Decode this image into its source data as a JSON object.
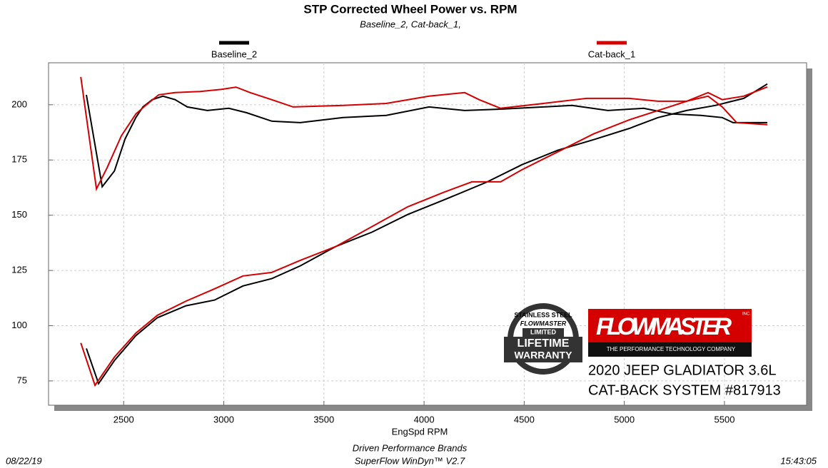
{
  "chart_data": {
    "type": "line",
    "title": "STP Corrected Wheel Power vs. RPM",
    "subtitle": "Baseline_2, Cat-back_1,",
    "x_label": "EngSpd  RPM",
    "xlim": [
      2125,
      5910
    ],
    "ylim": [
      64,
      219
    ],
    "xticks": [
      2500,
      3000,
      3500,
      4000,
      4500,
      5000,
      5500
    ],
    "yticks": [
      75,
      100,
      125,
      150,
      175,
      200
    ],
    "grid": true,
    "legend": "top",
    "series": [
      {
        "name": "Baseline_2",
        "color": "#000000",
        "curves": [
          {
            "x": [
              2314,
              2393,
              2454,
              2507,
              2561,
              2596,
              2643,
              2696,
              2757,
              2818,
              2918,
              3025,
              3114,
              3239,
              3382,
              3596,
              3811,
              4025,
              4203,
              4382,
              4596,
              4739,
              4918,
              5096,
              5239,
              5382,
              5489,
              5543,
              5614,
              5714
            ],
            "values": [
              204.5,
              162.9,
              170,
              184.5,
              194.2,
              199,
              202.3,
              203.9,
              202.3,
              199,
              197.4,
              198.4,
              196.4,
              192.6,
              191.9,
              194.2,
              195.2,
              199,
              197.4,
              198,
              199,
              199.7,
              197.4,
              198.4,
              195.8,
              195.2,
              194.2,
              191.9,
              191.9,
              191.9
            ]
          },
          {
            "x": [
              2314,
              2375,
              2454,
              2561,
              2668,
              2811,
              2954,
              3096,
              3239,
              3382,
              3561,
              3739,
              3918,
              4096,
              4311,
              4489,
              4668,
              4846,
              5025,
              5168,
              5311,
              5454,
              5596,
              5714
            ],
            "values": [
              89.7,
              73.8,
              84.2,
              95.5,
              103.6,
              109,
              111.6,
              118,
              121.3,
              127.1,
              135.9,
              142.3,
              150.3,
              156.8,
              164.9,
              172.9,
              179.4,
              184.2,
              189.3,
              194.2,
              197.4,
              199.7,
              202.9,
              209.4
            ]
          }
        ]
      },
      {
        "name": "Cat-back_1",
        "color": "#d40000",
        "curves": [
          {
            "x": [
              2286,
              2364,
              2418,
              2489,
              2561,
              2614,
              2675,
              2757,
              2882,
              2989,
              3061,
              3132,
              3239,
              3346,
              3596,
              3811,
              4025,
              4203,
              4275,
              4382,
              4596,
              4811,
              5025,
              5168,
              5311,
              5418,
              5489,
              5561,
              5714
            ],
            "values": [
              212.6,
              161.9,
              171.6,
              186,
              195.8,
              200,
              204.5,
              205.5,
              206,
              207,
              208,
              205.5,
              202.3,
              199,
              199.7,
              200.6,
              203.9,
              205.5,
              202.3,
              198.4,
              200.6,
              202.9,
              202.9,
              201.6,
              201.6,
              203.9,
              199,
              191.9,
              191
            ]
          },
          {
            "x": [
              2286,
              2357,
              2454,
              2561,
              2668,
              2811,
              2954,
              3096,
              3239,
              3382,
              3561,
              3739,
              3918,
              4096,
              4239,
              4382,
              4489,
              4668,
              4846,
              5025,
              5168,
              5311,
              5418,
              5489,
              5596,
              5714
            ],
            "values": [
              92.2,
              73,
              85.8,
              96.6,
              104.7,
              111.1,
              116.7,
              122.5,
              124.1,
              129.6,
              135.9,
              144.8,
              153.8,
              160.3,
              165.1,
              165.1,
              170.6,
              178.7,
              186.8,
              193.2,
              197.4,
              201.6,
              205.5,
              202.3,
              203.9,
              208.1
            ]
          }
        ]
      }
    ]
  },
  "footer": {
    "date": "08/22/19",
    "company": "Driven Performance Brands",
    "software": "SuperFlow WinDyn™  V2.7",
    "time": "15:43:05"
  },
  "badge": {
    "top": "STAINLESS STEEL",
    "brand": "FLOWMASTER",
    "limited": "LIMITED",
    "line1": "LIFETIME",
    "line2": "WARRANTY"
  },
  "logo": {
    "brand": "FLOWMASTER",
    "inc": "INC.",
    "tagline": "THE PERFORMANCE TECHNOLOGY COMPANY"
  },
  "caption": {
    "line1": "2020 JEEP GLADIATOR 3.6L",
    "line2": "CAT-BACK SYSTEM #817913"
  }
}
